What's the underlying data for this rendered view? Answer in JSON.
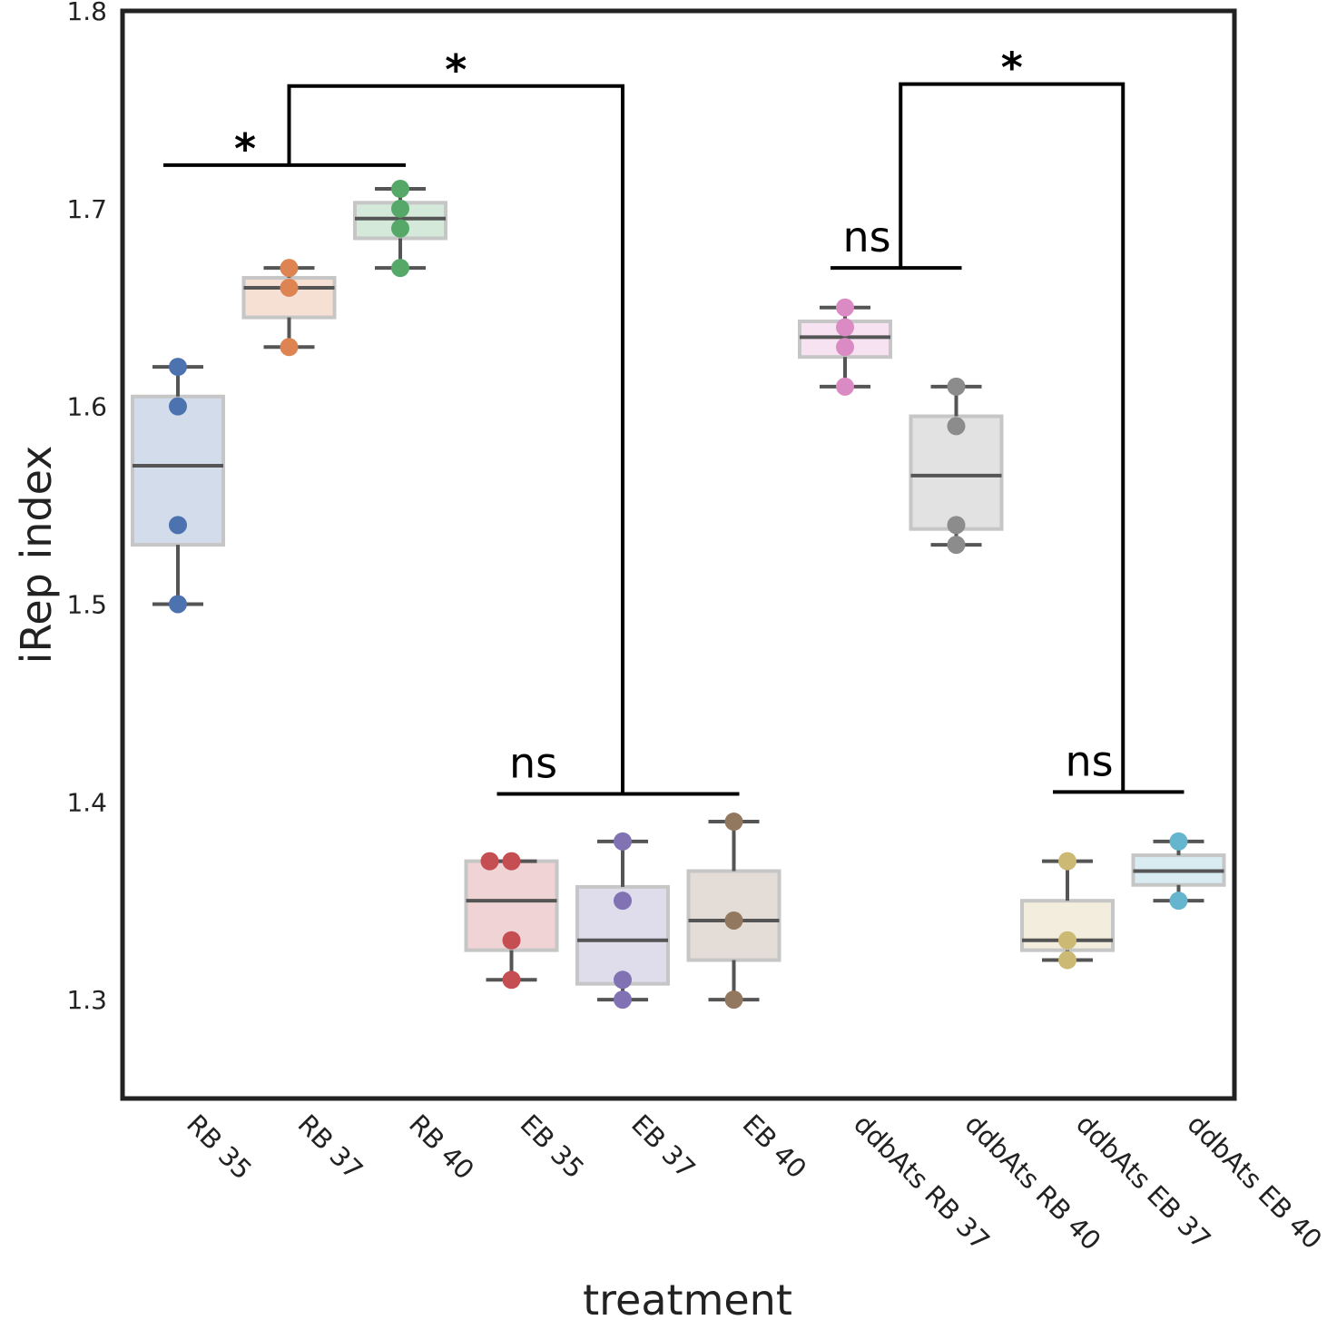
{
  "chart_data": {
    "type": "box",
    "xlabel": "treatment",
    "ylabel": "iRep index",
    "ylim": [
      1.25,
      1.8
    ],
    "yticks": [
      1.3,
      1.4,
      1.5,
      1.6,
      1.7,
      1.8
    ],
    "ytick_labels": [
      "1.3",
      "1.4",
      "1.5",
      "1.6",
      "1.7",
      "1.8"
    ],
    "grid": false,
    "categories": [
      "RB 35",
      "RB 37",
      "RB 40",
      "EB 35",
      "EB 37",
      "EB 40",
      "ddbAts RB 37",
      "ddbAts RB 40",
      "ddbAts EB 37",
      "ddbAts EB 40"
    ],
    "boxes": [
      {
        "category": "RB 35",
        "color": "#4c72b0",
        "q1": 1.53,
        "median": 1.57,
        "q3": 1.605,
        "whisker_low": 1.5,
        "whisker_high": 1.62,
        "points": [
          1.62,
          1.6,
          1.54,
          1.5
        ]
      },
      {
        "category": "RB 37",
        "color": "#dd8452",
        "q1": 1.645,
        "median": 1.66,
        "q3": 1.665,
        "whisker_low": 1.63,
        "whisker_high": 1.67,
        "points": [
          1.67,
          1.66,
          1.63
        ]
      },
      {
        "category": "RB 40",
        "color": "#55a868",
        "q1": 1.685,
        "median": 1.695,
        "q3": 1.703,
        "whisker_low": 1.67,
        "whisker_high": 1.71,
        "points": [
          1.71,
          1.7,
          1.69,
          1.67
        ]
      },
      {
        "category": "EB 35",
        "color": "#c44e52",
        "q1": 1.325,
        "median": 1.35,
        "q3": 1.37,
        "whisker_low": 1.31,
        "whisker_high": 1.37,
        "points": [
          1.37,
          1.37,
          1.33,
          1.31
        ]
      },
      {
        "category": "EB 37",
        "color": "#8172b3",
        "q1": 1.308,
        "median": 1.33,
        "q3": 1.357,
        "whisker_low": 1.3,
        "whisker_high": 1.38,
        "points": [
          1.38,
          1.35,
          1.31,
          1.3
        ]
      },
      {
        "category": "EB 40",
        "color": "#937860",
        "q1": 1.32,
        "median": 1.34,
        "q3": 1.365,
        "whisker_low": 1.3,
        "whisker_high": 1.39,
        "points": [
          1.39,
          1.34,
          1.3
        ]
      },
      {
        "category": "ddbAts RB 37",
        "color": "#da8bc3",
        "q1": 1.625,
        "median": 1.635,
        "q3": 1.643,
        "whisker_low": 1.61,
        "whisker_high": 1.65,
        "points": [
          1.65,
          1.64,
          1.63,
          1.61
        ]
      },
      {
        "category": "ddbAts RB 40",
        "color": "#8c8c8c",
        "q1": 1.538,
        "median": 1.565,
        "q3": 1.595,
        "whisker_low": 1.53,
        "whisker_high": 1.61,
        "points": [
          1.61,
          1.59,
          1.54,
          1.53
        ]
      },
      {
        "category": "ddbAts EB 37",
        "color": "#ccb974",
        "q1": 1.325,
        "median": 1.33,
        "q3": 1.35,
        "whisker_low": 1.32,
        "whisker_high": 1.37,
        "points": [
          1.37,
          1.33,
          1.32
        ]
      },
      {
        "category": "ddbAts EB 40",
        "color": "#64b5cd",
        "q1": 1.358,
        "median": 1.365,
        "q3": 1.373,
        "whisker_low": 1.35,
        "whisker_high": 1.38,
        "points": [
          1.38,
          1.35
        ]
      }
    ],
    "significance_brackets": [
      {
        "label": "*",
        "from_index": 0,
        "to_index": 2,
        "y": 1.722
      },
      {
        "label": "ns",
        "from_index": 3,
        "to_index": 5,
        "y": 1.404
      },
      {
        "label": "*",
        "from_index": 1,
        "to_index": 4,
        "y": 1.762,
        "drops_to": [
          1.722,
          1.404
        ]
      },
      {
        "label": "ns",
        "from_index": 6,
        "to_index": 7,
        "y": 1.67
      },
      {
        "label": "ns",
        "from_index": 8,
        "to_index": 9,
        "y": 1.405
      },
      {
        "label": "*",
        "from_index": 6.5,
        "to_index": 8.5,
        "y": 1.763,
        "drops_to": [
          1.67,
          1.405
        ]
      }
    ]
  }
}
